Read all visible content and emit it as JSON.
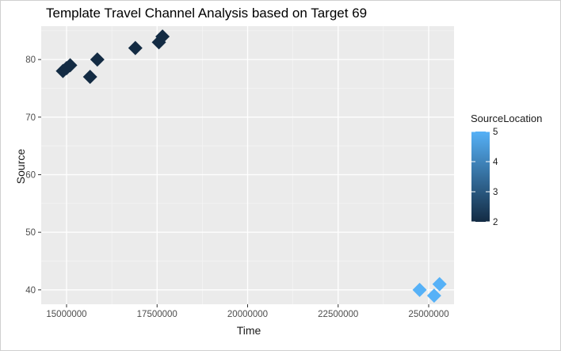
{
  "chart_data": {
    "type": "scatter",
    "title": "Template Travel Channel Analysis based on Target 69",
    "xlabel": "Time",
    "ylabel": "Source",
    "xlim": [
      14300000,
      25700000
    ],
    "ylim": [
      37.5,
      85.8
    ],
    "x_ticks": [
      15000000,
      17500000,
      20000000,
      22500000,
      25000000
    ],
    "x_tick_labels": [
      "15000000",
      "17500000",
      "20000000",
      "22500000",
      "25000000"
    ],
    "y_ticks": [
      40,
      50,
      60,
      70,
      80
    ],
    "y_tick_labels": [
      "40",
      "50",
      "60",
      "70",
      "80"
    ],
    "grid": true,
    "marker": "diamond",
    "legend": {
      "title": "SourceLocation",
      "placement": "right",
      "type": "colorbar",
      "min": 2,
      "max": 5,
      "ticks": [
        2,
        3,
        4,
        5
      ],
      "tick_labels": [
        "2",
        "3",
        "4",
        "5"
      ],
      "color_low": "#132b43",
      "color_high": "#56b1f7"
    },
    "points": [
      {
        "x": 14900000,
        "y": 78,
        "color_value": 2
      },
      {
        "x": 15000000,
        "y": 78.5,
        "color_value": 2
      },
      {
        "x": 15100000,
        "y": 79,
        "color_value": 2
      },
      {
        "x": 15650000,
        "y": 77,
        "color_value": 2
      },
      {
        "x": 15850000,
        "y": 80,
        "color_value": 2
      },
      {
        "x": 16900000,
        "y": 82,
        "color_value": 2
      },
      {
        "x": 17550000,
        "y": 83,
        "color_value": 2
      },
      {
        "x": 17650000,
        "y": 84,
        "color_value": 2
      },
      {
        "x": 24750000,
        "y": 40,
        "color_value": 5
      },
      {
        "x": 25150000,
        "y": 39,
        "color_value": 5
      },
      {
        "x": 25300000,
        "y": 41,
        "color_value": 5
      }
    ]
  }
}
